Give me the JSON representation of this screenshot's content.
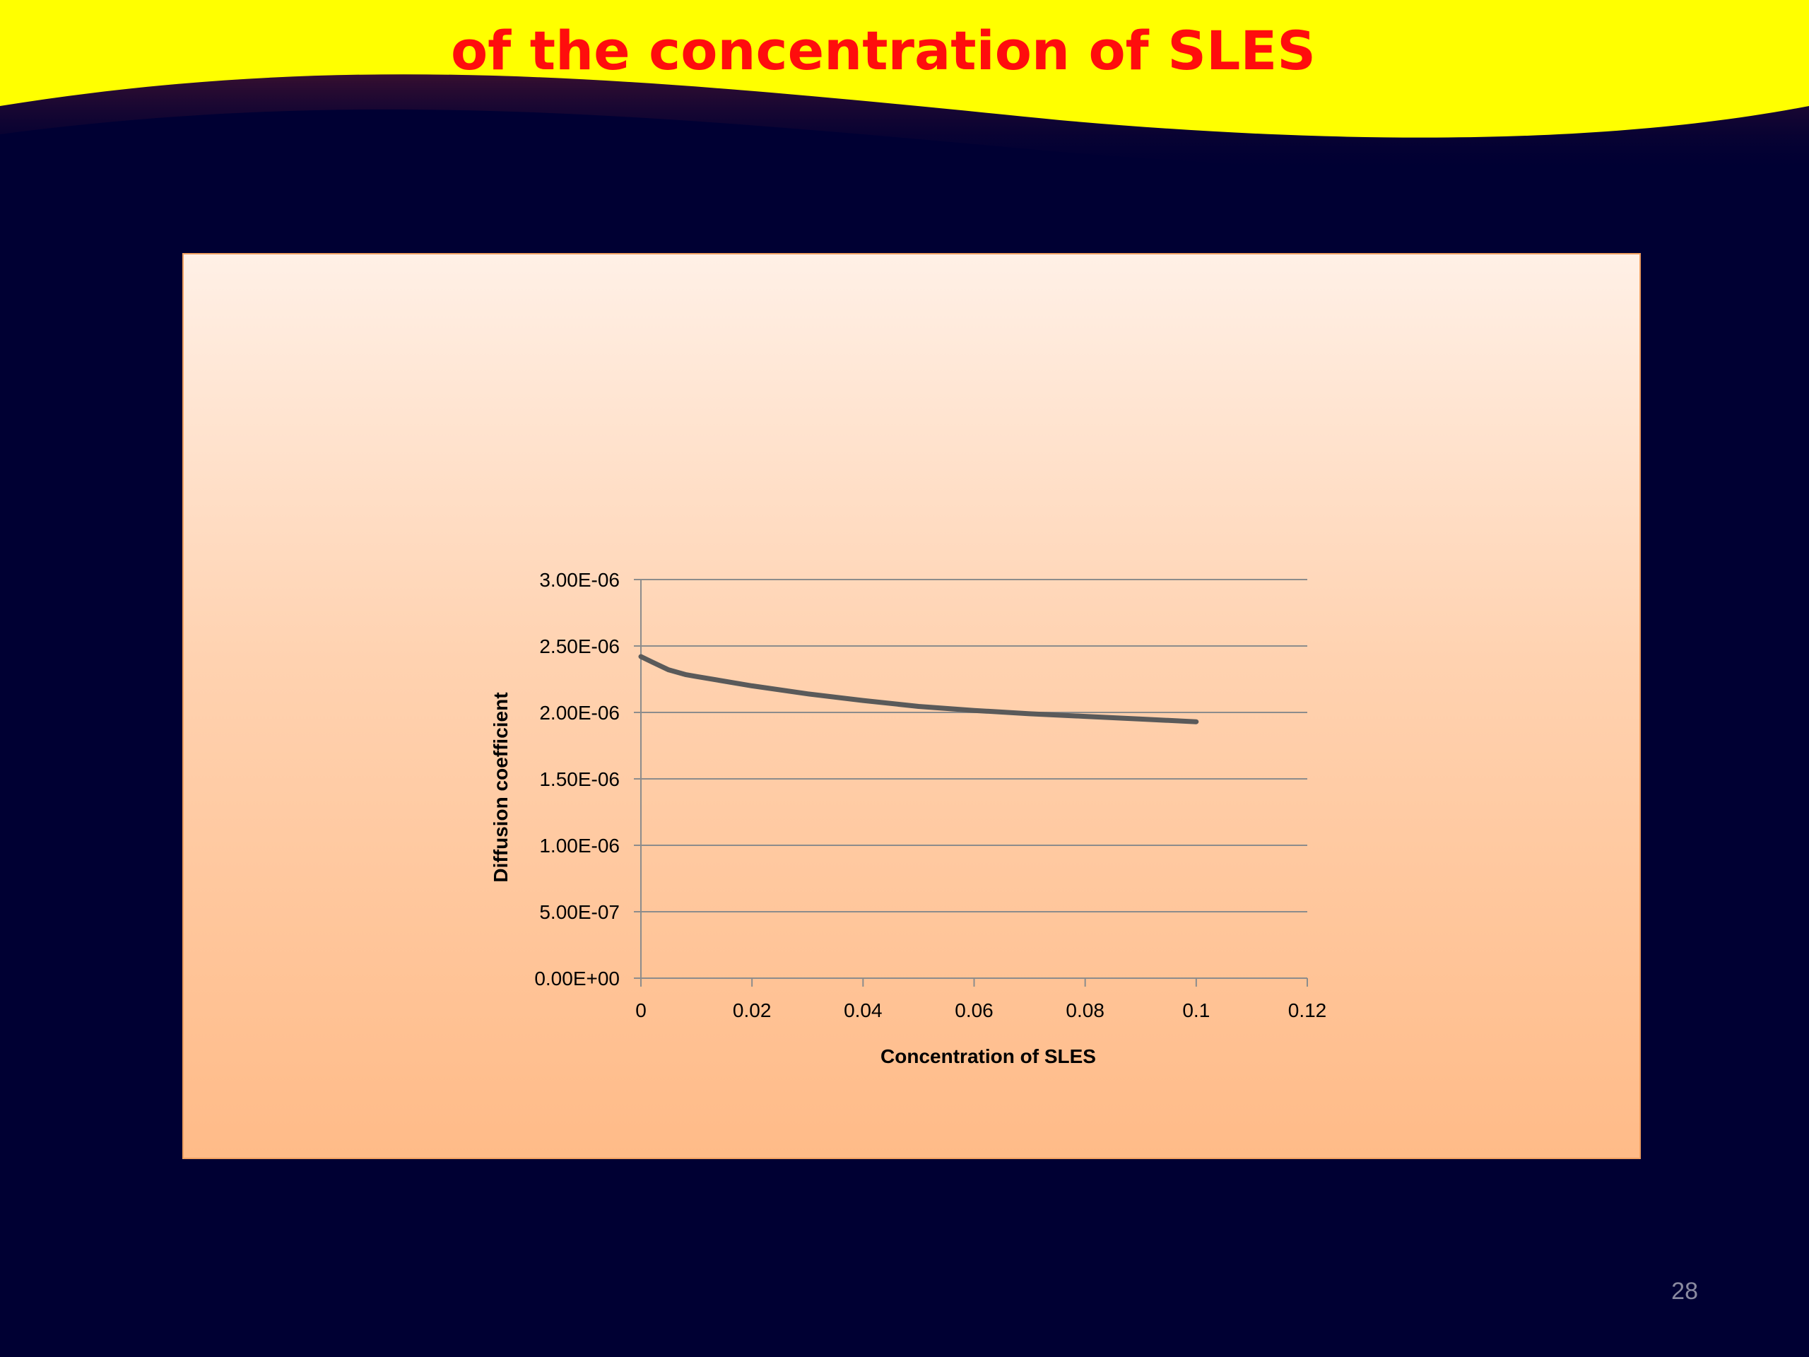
{
  "slide": {
    "title": "of the concentration of SLES",
    "page_number": "28"
  },
  "colors": {
    "background": "#000033",
    "header_band": "#ffff00",
    "title": "#ff0d0d",
    "panel_top": "#fff0e6",
    "panel_bottom": "#ffbb88",
    "series_line": "#5a5a5a",
    "gridline": "#8c8c8c"
  },
  "chart_data": {
    "type": "line",
    "title": "",
    "xlabel": "Concentration of  SLES",
    "ylabel": "Diffusion coefficient",
    "xlim": [
      0,
      0.12
    ],
    "ylim": [
      0,
      3e-06
    ],
    "x_ticks": [
      "0",
      "0.02",
      "0.04",
      "0.06",
      "0.08",
      "0.1",
      "0.12"
    ],
    "x_tick_values": [
      0,
      0.02,
      0.04,
      0.06,
      0.08,
      0.1,
      0.12
    ],
    "y_ticks": [
      "0.00E+00",
      "5.00E-07",
      "1.00E-06",
      "1.50E-06",
      "2.00E-06",
      "2.50E-06",
      "3.00E-06"
    ],
    "y_tick_values": [
      0,
      5e-07,
      1e-06,
      1.5e-06,
      2e-06,
      2.5e-06,
      3e-06
    ],
    "grid": true,
    "legend": "none",
    "series": [
      {
        "x": [
          0,
          0.002,
          0.005,
          0.008,
          0.01,
          0.02,
          0.03,
          0.04,
          0.05,
          0.06,
          0.07,
          0.08,
          0.09,
          0.1
        ],
        "values": [
          2.42e-06,
          2.38e-06,
          2.32e-06,
          2.285e-06,
          2.27e-06,
          2.2e-06,
          2.14e-06,
          2.09e-06,
          2.045e-06,
          2.015e-06,
          1.99e-06,
          1.97e-06,
          1.95e-06,
          1.93e-06
        ]
      }
    ]
  }
}
